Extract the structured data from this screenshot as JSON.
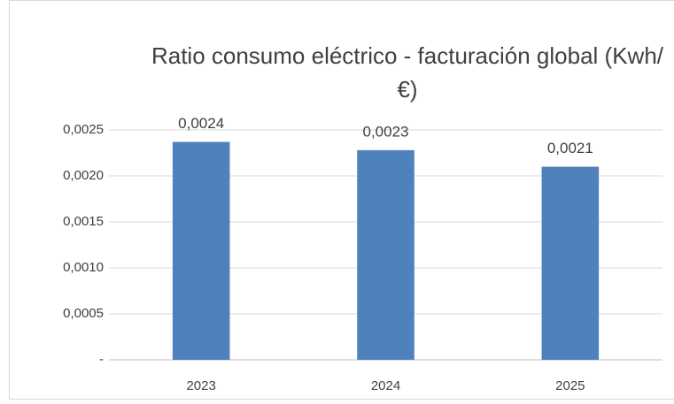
{
  "chart_data": {
    "type": "bar",
    "title": "Ratio consumo eléctrico - facturación global (Kwh/€)",
    "categories": [
      "2023",
      "2024",
      "2025"
    ],
    "values": [
      0.00237,
      0.00228,
      0.0021
    ],
    "value_labels": [
      "0,0024",
      "0,0023",
      "0,0021"
    ],
    "color": "#4f81bd",
    "ylim": [
      0,
      0.0025
    ],
    "yticks": [
      {
        "value": 0,
        "label": "-"
      },
      {
        "value": 0.0005,
        "label": "0,0005"
      },
      {
        "value": 0.001,
        "label": "0,0010"
      },
      {
        "value": 0.0015,
        "label": "0,0015"
      },
      {
        "value": 0.002,
        "label": "0,0020"
      },
      {
        "value": 0.0025,
        "label": "0,0025"
      }
    ],
    "grid": true
  }
}
